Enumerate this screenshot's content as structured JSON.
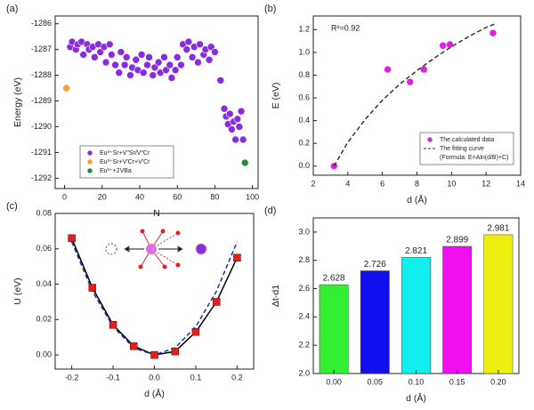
{
  "chart_data": [
    {
      "type": "scatter",
      "panel_label": "(a)",
      "x_label": "N",
      "y_label": "Energy (eV)",
      "xlim": [
        -5,
        103
      ],
      "xticks": [
        0,
        20,
        40,
        60,
        80,
        100
      ],
      "ylim": [
        -1292.4,
        -1285.7
      ],
      "yticks": [
        -1286,
        -1287,
        -1288,
        -1289,
        -1290,
        -1291,
        -1292
      ],
      "legend": "lower-left",
      "series": [
        {
          "name": "Eu³⁺Sr+V″Sr/V″Cr",
          "color": "#8a2be2",
          "marker": "circle",
          "x": [
            3,
            4,
            6,
            7,
            9,
            10,
            12,
            13,
            15,
            16,
            18,
            19,
            21,
            22,
            24,
            25,
            27,
            29,
            30,
            32,
            33,
            35,
            36,
            38,
            39,
            41,
            42,
            44,
            45,
            47,
            48,
            50,
            51,
            53,
            54,
            56,
            57,
            59,
            60,
            62,
            63,
            65,
            66,
            68,
            69,
            71,
            72,
            74,
            75,
            77,
            78,
            80,
            83,
            85,
            86,
            87,
            88,
            89,
            90,
            91,
            92,
            93,
            94,
            95
          ],
          "values": [
            -1286.9,
            -1286.7,
            -1287.0,
            -1286.8,
            -1286.7,
            -1287.2,
            -1286.8,
            -1287.0,
            -1286.9,
            -1287.3,
            -1286.8,
            -1287.1,
            -1286.9,
            -1287.5,
            -1286.8,
            -1287.2,
            -1287.6,
            -1287.9,
            -1287.1,
            -1287.6,
            -1287.3,
            -1288.0,
            -1287.7,
            -1287.4,
            -1287.8,
            -1287.2,
            -1287.9,
            -1287.6,
            -1287.3,
            -1288.0,
            -1287.7,
            -1287.5,
            -1287.9,
            -1287.3,
            -1287.8,
            -1287.6,
            -1288.1,
            -1287.8,
            -1287.3,
            -1287.6,
            -1286.8,
            -1287.0,
            -1286.7,
            -1287.3,
            -1286.9,
            -1287.5,
            -1286.8,
            -1287.2,
            -1287.0,
            -1287.4,
            -1286.9,
            -1287.1,
            -1288.2,
            -1289.3,
            -1289.6,
            -1289.9,
            -1289.5,
            -1290.1,
            -1289.8,
            -1290.5,
            -1289.7,
            -1290.0,
            -1289.4,
            -1290.5
          ]
        },
        {
          "name": "Eu³⁺Sr+V′Cr+V′Cr",
          "color": "#f5a030",
          "marker": "circle",
          "x": [
            1
          ],
          "values": [
            -1288.5
          ]
        },
        {
          "name": "Eu³⁺+2VBa",
          "color": "#1f8a3a",
          "marker": "circle",
          "x": [
            96
          ],
          "values": [
            -1291.4
          ]
        }
      ]
    },
    {
      "type": "scatter",
      "panel_label": "(b)",
      "x_label": "d (Å)",
      "y_label": "E (eV)",
      "annotation": "R²=0.92",
      "xlim": [
        2,
        14
      ],
      "xticks": [
        2,
        4,
        6,
        8,
        10,
        12,
        14
      ],
      "ylim": [
        -0.08,
        1.32
      ],
      "yticks": [
        {
          "value": 0,
          "label": "0.0"
        },
        0.2,
        0.4,
        0.6,
        0.8,
        {
          "value": 1,
          "label": "1.0"
        },
        1.2
      ],
      "legend": "lower-right",
      "legend_note": "(Formula: E=Aln(d/B)+C)",
      "series": [
        {
          "name": "The calculated data",
          "color": "#e020e0",
          "marker": "circle",
          "x": [
            3.2,
            6.3,
            7.6,
            8.4,
            9.5,
            9.9,
            12.4
          ],
          "values": [
            0,
            0.85,
            0.74,
            0.85,
            1.06,
            1.07,
            1.17
          ]
        },
        {
          "name": "The fitting curve",
          "color": "#333333",
          "line": "dashed",
          "x": [
            3.2,
            4,
            5,
            6,
            7,
            8,
            9,
            10,
            11,
            12,
            12.5
          ],
          "values": [
            0,
            0.21,
            0.41,
            0.58,
            0.72,
            0.84,
            0.95,
            1.05,
            1.14,
            1.22,
            1.25
          ]
        }
      ]
    },
    {
      "type": "scatter",
      "panel_label": "(c)",
      "x_label": "d (Å)",
      "y_label": "U (eV)",
      "xlim": [
        -0.24,
        0.24
      ],
      "xticks": [
        -0.2,
        -0.1,
        {
          "value": 0,
          "label": "0.0"
        },
        0.1,
        0.2
      ],
      "ylim": [
        -0.008,
        0.08
      ],
      "yticks": [
        {
          "value": 0,
          "label": "0.00"
        },
        0.02,
        0.04,
        0.06,
        {
          "value": 0.08,
          "label": "0.08"
        }
      ],
      "series": [
        {
          "color": "#000000",
          "line": "solid",
          "x": [
            -0.2,
            -0.15,
            -0.1,
            -0.05,
            0,
            0.05,
            0.1,
            0.15,
            0.2
          ],
          "values": [
            0.066,
            0.038,
            0.017,
            0.005,
            0,
            0.002,
            0.013,
            0.03,
            0.055
          ]
        },
        {
          "color": "#2030a0",
          "line": "dashed",
          "x": [
            -0.2,
            -0.15,
            -0.1,
            -0.05,
            0,
            0.05,
            0.1,
            0.15,
            0.2
          ],
          "values": [
            0.064,
            0.036,
            0.016,
            0.004,
            0,
            0.004,
            0.016,
            0.036,
            0.064
          ]
        },
        {
          "color": "#e02020",
          "marker": "square",
          "x": [
            -0.2,
            -0.15,
            -0.1,
            -0.05,
            0,
            0.05,
            0.1,
            0.15,
            0.2
          ],
          "values": [
            0.066,
            0.038,
            0.017,
            0.005,
            0,
            0.002,
            0.013,
            0.03,
            0.055
          ]
        }
      ]
    },
    {
      "type": "bar",
      "panel_label": "(d)",
      "x_label": "d (Å)",
      "y_label": "Δt-d1",
      "categories": [
        "0.00",
        "0.05",
        "0.10",
        "0.15",
        "0.20"
      ],
      "values": [
        2.628,
        2.726,
        2.821,
        2.899,
        2.981
      ],
      "colors": [
        "#33ee33",
        "#1010ee",
        "#10eeee",
        "#ee10ee",
        "#eeee10"
      ],
      "ylim": [
        2.0,
        3.1
      ],
      "yticks": [
        {
          "value": 2,
          "label": "2.0"
        },
        2.2,
        2.4,
        2.6,
        2.8,
        {
          "value": 3,
          "label": "3.0"
        }
      ]
    }
  ]
}
